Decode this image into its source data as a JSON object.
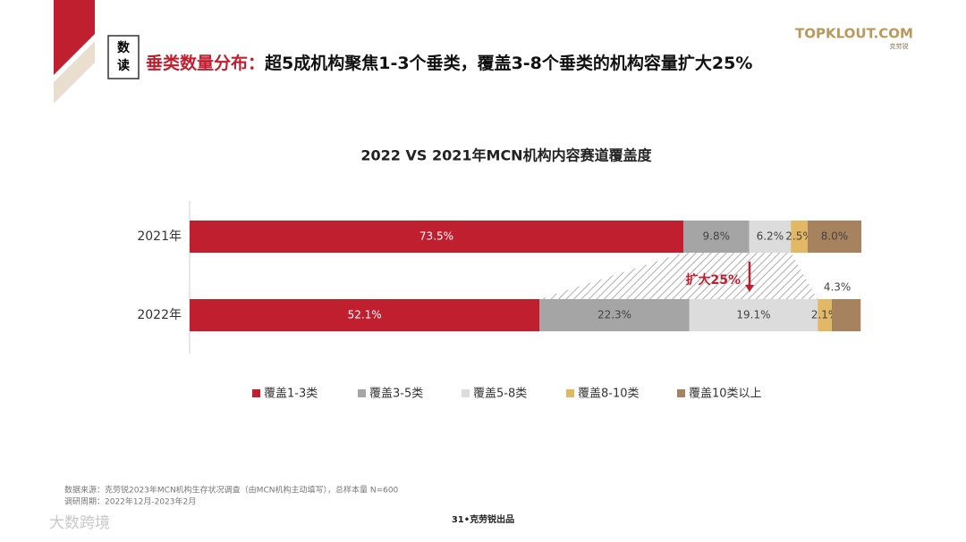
{
  "header": {
    "tag": [
      "数",
      "读"
    ],
    "title_lead": "垂类数量分布：",
    "title_rest": "超5成机构聚焦1-3个垂类，覆盖3-8个垂类的机构容量扩大25%",
    "logo": "TOPKLOUT.COM",
    "logo_sub": "克劳锐"
  },
  "chart_data": {
    "type": "stacked-bar-horizontal",
    "title": "2022 VS 2021年MCN机构内容赛道覆盖度",
    "categories": [
      "2021年",
      "2022年"
    ],
    "xlim": [
      0,
      100
    ],
    "series": [
      {
        "name": "覆盖1-3类",
        "color": "#c01f2f",
        "values": [
          73.5,
          52.1
        ],
        "value_labels": [
          "73.5%",
          "52.1%"
        ]
      },
      {
        "name": "覆盖3-5类",
        "color": "#a5a5a5",
        "values": [
          9.8,
          22.3
        ],
        "value_labels": [
          "9.8%",
          "22.3%"
        ]
      },
      {
        "name": "覆盖5-8类",
        "color": "#dcdcdc",
        "values": [
          6.2,
          19.1
        ],
        "value_labels": [
          "6.2%",
          "19.1%"
        ]
      },
      {
        "name": "覆盖8-10类",
        "color": "#e1b866",
        "values": [
          2.5,
          2.1
        ],
        "value_labels": [
          "2.5%",
          "2.1%"
        ]
      },
      {
        "name": "覆盖10类以上",
        "color": "#a7825f",
        "values": [
          8.0,
          4.3
        ],
        "value_labels": [
          "8.0%",
          "4.3%"
        ]
      }
    ],
    "annotation": "扩大25%",
    "legend": "bottom"
  },
  "footer": {
    "source": "数据来源：克劳锐2023年MCN机构生存状况调查（由MCN机构主动填写），总样本量 N=600",
    "period": "调研周期：2022年12月-2023年2月",
    "page": "31•克劳锐出品",
    "watermark": "大数跨境"
  }
}
